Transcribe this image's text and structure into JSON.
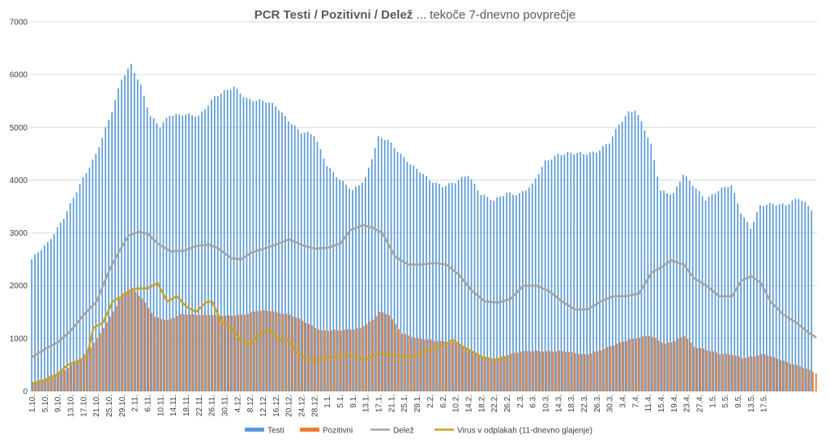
{
  "chart_data": {
    "type": "bar",
    "title_bold": "PCR Testi / Pozitivni / Delež",
    "title_rest": " ... tekoče 7-dnevno povprečje",
    "ylim": [
      0,
      7000
    ],
    "yticks": [
      0,
      1000,
      2000,
      3000,
      4000,
      5000,
      6000,
      7000
    ],
    "grid": true,
    "legend_position": "bottom",
    "colors": {
      "testi": "#5b9bd5",
      "pozitivni": "#ed7d31",
      "delez": "#a5a5a5",
      "virus": "#c9a227"
    },
    "x_labels": [
      "1.10.",
      "5.10.",
      "9.10.",
      "13.10.",
      "17.10.",
      "21.10.",
      "25.10.",
      "29.10.",
      "2.11.",
      "6.11.",
      "10.11.",
      "14.11.",
      "18.11.",
      "22.11.",
      "26.11.",
      "30.11.",
      "4.12.",
      "8.12.",
      "12.12.",
      "16.12.",
      "20.12.",
      "24.12.",
      "28.12.",
      "1.1.",
      "5.1.",
      "9.1.",
      "13.1.",
      "17.1.",
      "21.1.",
      "25.1.",
      "29.1.",
      "2.2.",
      "6.2.",
      "10.2.",
      "14.2.",
      "18.2.",
      "22.2.",
      "26.2.",
      "2.3.",
      "6.3.",
      "10.3.",
      "14.3.",
      "18.3.",
      "22.3.",
      "26.3.",
      "30.3.",
      "3.4.",
      "7.4.",
      "11.4.",
      "15.4.",
      "19.4.",
      "23.4.",
      "27.4.",
      "1.5.",
      "5.5.",
      "9.5.",
      "13.5.",
      "17.5."
    ],
    "series": [
      {
        "name": "Testi",
        "type": "bar",
        "knots": [
          [
            0,
            2500
          ],
          [
            5,
            2800
          ],
          [
            10,
            3300
          ],
          [
            15,
            3900
          ],
          [
            20,
            4500
          ],
          [
            25,
            5300
          ],
          [
            28,
            5900
          ],
          [
            31,
            6200
          ],
          [
            34,
            5800
          ],
          [
            37,
            5200
          ],
          [
            40,
            5000
          ],
          [
            43,
            5250
          ],
          [
            47,
            5250
          ],
          [
            52,
            5200
          ],
          [
            57,
            5600
          ],
          [
            63,
            5750
          ],
          [
            67,
            5550
          ],
          [
            72,
            5500
          ],
          [
            76,
            5400
          ],
          [
            80,
            5150
          ],
          [
            84,
            4900
          ],
          [
            88,
            4850
          ],
          [
            92,
            4300
          ],
          [
            96,
            4000
          ],
          [
            100,
            3800
          ],
          [
            104,
            4050
          ],
          [
            108,
            4800
          ],
          [
            111,
            4750
          ],
          [
            115,
            4500
          ],
          [
            119,
            4250
          ],
          [
            124,
            4000
          ],
          [
            128,
            3900
          ],
          [
            132,
            3950
          ],
          [
            136,
            4100
          ],
          [
            140,
            3750
          ],
          [
            144,
            3600
          ],
          [
            148,
            3750
          ],
          [
            152,
            3750
          ],
          [
            156,
            3900
          ],
          [
            160,
            4350
          ],
          [
            164,
            4500
          ],
          [
            168,
            4500
          ],
          [
            172,
            4500
          ],
          [
            176,
            4550
          ],
          [
            180,
            4700
          ],
          [
            183,
            5050
          ],
          [
            186,
            5300
          ],
          [
            188,
            5350
          ],
          [
            190,
            5100
          ],
          [
            193,
            4650
          ],
          [
            196,
            3800
          ],
          [
            200,
            3750
          ],
          [
            203,
            4100
          ],
          [
            206,
            3900
          ],
          [
            210,
            3650
          ],
          [
            214,
            3800
          ],
          [
            218,
            3900
          ],
          [
            221,
            3400
          ],
          [
            224,
            3100
          ],
          [
            227,
            3500
          ],
          [
            231,
            3550
          ],
          [
            235,
            3550
          ],
          [
            239,
            3650
          ],
          [
            243,
            3450
          ]
        ]
      },
      {
        "name": "Pozitivni",
        "type": "bar",
        "knots": [
          [
            0,
            150
          ],
          [
            5,
            280
          ],
          [
            10,
            400
          ],
          [
            15,
            620
          ],
          [
            20,
            1000
          ],
          [
            24,
            1400
          ],
          [
            28,
            1850
          ],
          [
            31,
            1950
          ],
          [
            34,
            1750
          ],
          [
            38,
            1400
          ],
          [
            42,
            1350
          ],
          [
            46,
            1450
          ],
          [
            50,
            1450
          ],
          [
            55,
            1450
          ],
          [
            60,
            1420
          ],
          [
            66,
            1460
          ],
          [
            70,
            1520
          ],
          [
            74,
            1520
          ],
          [
            80,
            1450
          ],
          [
            85,
            1300
          ],
          [
            90,
            1150
          ],
          [
            96,
            1150
          ],
          [
            102,
            1200
          ],
          [
            106,
            1350
          ],
          [
            108,
            1500
          ],
          [
            111,
            1450
          ],
          [
            115,
            1100
          ],
          [
            119,
            1000
          ],
          [
            125,
            970
          ],
          [
            132,
            900
          ],
          [
            136,
            800
          ],
          [
            140,
            650
          ],
          [
            144,
            600
          ],
          [
            148,
            700
          ],
          [
            152,
            750
          ],
          [
            158,
            760
          ],
          [
            164,
            760
          ],
          [
            168,
            730
          ],
          [
            172,
            700
          ],
          [
            176,
            750
          ],
          [
            180,
            850
          ],
          [
            184,
            950
          ],
          [
            188,
            1000
          ],
          [
            192,
            1050
          ],
          [
            194,
            1000
          ],
          [
            197,
            900
          ],
          [
            200,
            950
          ],
          [
            203,
            1050
          ],
          [
            206,
            850
          ],
          [
            210,
            780
          ],
          [
            214,
            700
          ],
          [
            218,
            700
          ],
          [
            221,
            630
          ],
          [
            224,
            650
          ],
          [
            228,
            700
          ],
          [
            232,
            620
          ],
          [
            236,
            520
          ],
          [
            240,
            450
          ],
          [
            244,
            350
          ]
        ]
      },
      {
        "name": "Delež",
        "type": "line",
        "knots": [
          [
            0,
            650
          ],
          [
            4,
            800
          ],
          [
            8,
            930
          ],
          [
            12,
            1150
          ],
          [
            16,
            1450
          ],
          [
            20,
            1700
          ],
          [
            24,
            2300
          ],
          [
            27,
            2650
          ],
          [
            30,
            2950
          ],
          [
            33,
            3020
          ],
          [
            36,
            2980
          ],
          [
            39,
            2800
          ],
          [
            43,
            2650
          ],
          [
            47,
            2660
          ],
          [
            51,
            2750
          ],
          [
            55,
            2780
          ],
          [
            58,
            2700
          ],
          [
            62,
            2520
          ],
          [
            65,
            2500
          ],
          [
            68,
            2620
          ],
          [
            72,
            2700
          ],
          [
            76,
            2780
          ],
          [
            80,
            2880
          ],
          [
            84,
            2770
          ],
          [
            88,
            2700
          ],
          [
            92,
            2720
          ],
          [
            96,
            2800
          ],
          [
            99,
            3050
          ],
          [
            103,
            3150
          ],
          [
            106,
            3100
          ],
          [
            109,
            3000
          ],
          [
            113,
            2550
          ],
          [
            117,
            2400
          ],
          [
            121,
            2400
          ],
          [
            125,
            2430
          ],
          [
            129,
            2400
          ],
          [
            133,
            2200
          ],
          [
            137,
            1900
          ],
          [
            141,
            1700
          ],
          [
            145,
            1680
          ],
          [
            149,
            1750
          ],
          [
            153,
            2000
          ],
          [
            157,
            2000
          ],
          [
            161,
            1900
          ],
          [
            165,
            1700
          ],
          [
            169,
            1550
          ],
          [
            173,
            1550
          ],
          [
            177,
            1700
          ],
          [
            181,
            1800
          ],
          [
            185,
            1800
          ],
          [
            189,
            1850
          ],
          [
            193,
            2250
          ],
          [
            196,
            2350
          ],
          [
            199,
            2480
          ],
          [
            203,
            2400
          ],
          [
            206,
            2150
          ],
          [
            210,
            2000
          ],
          [
            214,
            1800
          ],
          [
            218,
            1800
          ],
          [
            221,
            2100
          ],
          [
            224,
            2180
          ],
          [
            227,
            2050
          ],
          [
            230,
            1700
          ],
          [
            234,
            1450
          ],
          [
            238,
            1300
          ],
          [
            242,
            1100
          ],
          [
            244,
            1030
          ]
        ]
      },
      {
        "name": "Virus v odplakah (11-dnevno glajenje)",
        "type": "line",
        "knots": [
          [
            0,
            150
          ],
          [
            4,
            200
          ],
          [
            8,
            330
          ],
          [
            11,
            500
          ],
          [
            14,
            570
          ],
          [
            17,
            650
          ],
          [
            19,
            1200
          ],
          [
            22,
            1300
          ],
          [
            25,
            1700
          ],
          [
            28,
            1800
          ],
          [
            30,
            1900
          ],
          [
            33,
            1950
          ],
          [
            36,
            1950
          ],
          [
            39,
            2050
          ],
          [
            42,
            1700
          ],
          [
            45,
            1800
          ],
          [
            48,
            1600
          ],
          [
            51,
            1500
          ],
          [
            54,
            1680
          ],
          [
            56,
            1700
          ],
          [
            59,
            1300
          ],
          [
            62,
            1200
          ],
          [
            65,
            950
          ],
          [
            68,
            900
          ],
          [
            71,
            1100
          ],
          [
            74,
            1150
          ],
          [
            77,
            980
          ],
          [
            80,
            950
          ],
          [
            83,
            700
          ],
          [
            86,
            600
          ],
          [
            89,
            580
          ],
          [
            92,
            650
          ],
          [
            95,
            650
          ],
          [
            98,
            700
          ],
          [
            101,
            650
          ],
          [
            104,
            600
          ],
          [
            107,
            700
          ],
          [
            110,
            700
          ],
          [
            113,
            680
          ],
          [
            116,
            650
          ],
          [
            119,
            650
          ],
          [
            122,
            750
          ],
          [
            125,
            800
          ],
          [
            128,
            880
          ],
          [
            131,
            970
          ],
          [
            134,
            850
          ],
          [
            137,
            750
          ],
          [
            140,
            650
          ],
          [
            143,
            600
          ],
          [
            146,
            600
          ],
          [
            148,
            620
          ]
        ]
      }
    ]
  },
  "legend": [
    {
      "label": "Testi",
      "swatch": "bar",
      "color": "#5b9bd5"
    },
    {
      "label": "Pozitivni",
      "swatch": "bar",
      "color": "#ed7d31"
    },
    {
      "label": "Delež",
      "swatch": "line",
      "color": "#a5a5a5"
    },
    {
      "label": "Virus v odplakah (11-dnevno glajenje)",
      "swatch": "line",
      "color": "#c9a227"
    }
  ]
}
